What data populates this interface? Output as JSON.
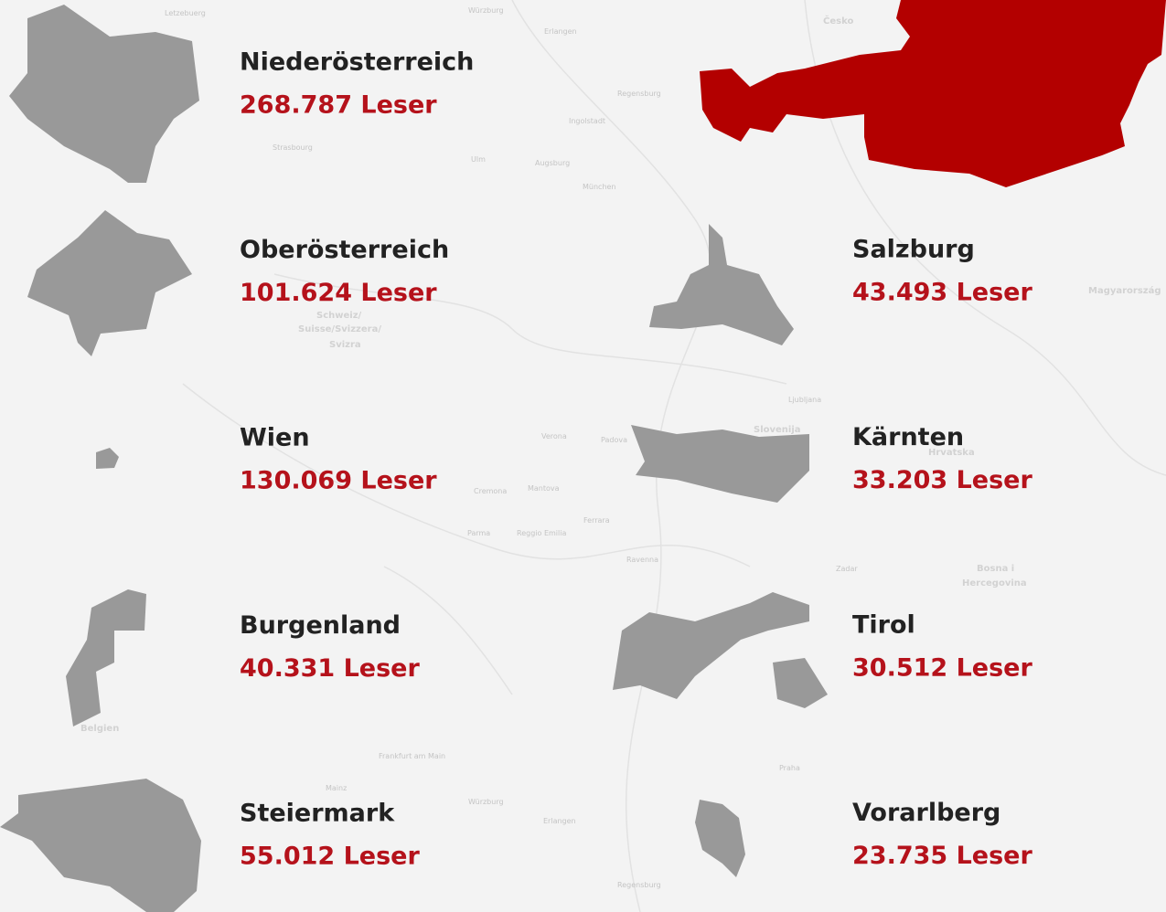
{
  "states": [
    {
      "name": "Niederösterreich",
      "readers": "268.787 Leser"
    },
    {
      "name": "Oberösterreich",
      "readers": "101.624 Leser"
    },
    {
      "name": "Wien",
      "readers": "130.069 Leser"
    },
    {
      "name": "Burgenland",
      "readers": "40.331 Leser"
    },
    {
      "name": "Steiermark",
      "readers": "55.012 Leser"
    },
    {
      "name": "Salzburg",
      "readers": "43.493 Leser"
    },
    {
      "name": "Kärnten",
      "readers": "33.203 Leser"
    },
    {
      "name": "Tirol",
      "readers": "30.512 Leser"
    },
    {
      "name": "Vorarlberg",
      "readers": "23.735 Leser"
    }
  ],
  "map_labels": [
    "Letzebuerg",
    "Würzburg",
    "Erlangen",
    "Česko",
    "Regensburg",
    "Ingolstadt",
    "Strasbourg",
    "Ulm",
    "Augsburg",
    "München",
    "Schweiz/",
    "Suisse/Svizzera/",
    "Svizra",
    "Slovenija",
    "Hrvatska",
    "Verona",
    "Padova",
    "Cremona",
    "Mantova",
    "Ferrara",
    "Parma",
    "Reggio Emilia",
    "Ravenna",
    "Zadar",
    "Bosna i",
    "Hercegovina",
    "Magyarország",
    "Ljubljana",
    "Praha",
    "Frankfurt am Main",
    "Belgien",
    "Mainz",
    "Regensburg",
    "Erlangen",
    "Würzburg"
  ]
}
